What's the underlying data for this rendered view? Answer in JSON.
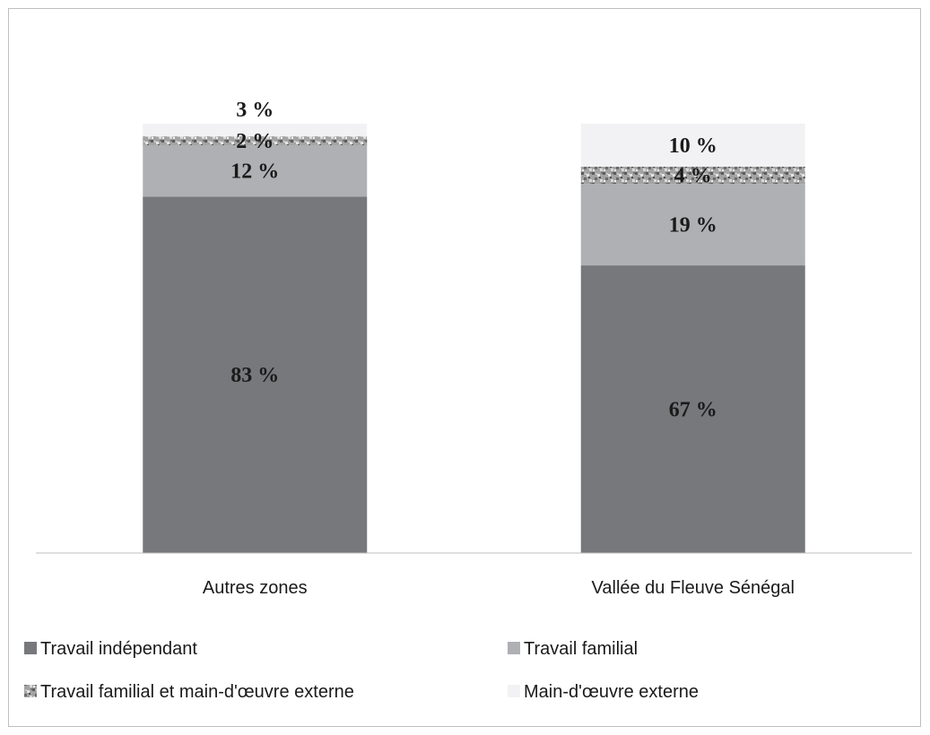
{
  "chart_data": {
    "type": "bar",
    "stacked": true,
    "categories": [
      "Autres zones",
      "Vallée du Fleuve Sénégal"
    ],
    "series": [
      {
        "name": "Travail indépendant",
        "values": [
          83,
          67
        ],
        "labels": [
          "83 %",
          "67 %"
        ],
        "color": "#77787b",
        "pattern": "solid"
      },
      {
        "name": "Travail familial",
        "values": [
          12,
          19
        ],
        "labels": [
          "12 %",
          "19 %"
        ],
        "color": "#afb0b3",
        "pattern": "solid"
      },
      {
        "name": "Travail familial et main-d'œuvre externe",
        "values": [
          2,
          4
        ],
        "labels": [
          "2 %",
          "4 %"
        ],
        "color": "#9a9a9a",
        "pattern": "speckle"
      },
      {
        "name": "Main-d'œuvre externe",
        "values": [
          3,
          10
        ],
        "labels": [
          "3 %",
          "10 %"
        ],
        "color": "#f2f2f4",
        "pattern": "solid"
      }
    ],
    "ylim": [
      0,
      100
    ],
    "grid": false,
    "legend_position": "bottom"
  }
}
